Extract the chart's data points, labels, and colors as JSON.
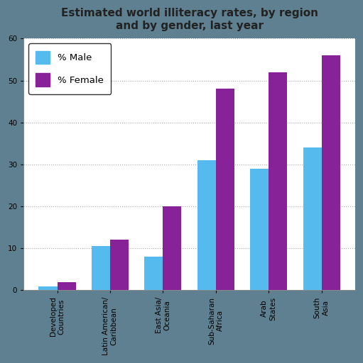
{
  "title": "Estimated world illiteracy rates, by region\nand by gender, last year",
  "categories": [
    "Developed\nCountries",
    "Latin American/\nCaribbean",
    "East Asia/\nOceania",
    "Sub-Saharan\nAfrica",
    "Arab\nStates",
    "South\nAsia"
  ],
  "male_values": [
    1,
    10.5,
    8,
    31,
    29,
    34
  ],
  "female_values": [
    2,
    12,
    20,
    48,
    52,
    56
  ],
  "male_color": "#55BBEE",
  "female_color": "#882299",
  "ylim": [
    0,
    60
  ],
  "yticks": [
    0,
    10,
    20,
    30,
    40,
    50,
    60
  ],
  "outer_bg_color": "#5F8090",
  "plot_bg_color": "#FFFFFF",
  "title_fontsize": 11,
  "tick_fontsize": 7.5,
  "legend_fontsize": 9.5,
  "bar_width": 0.35
}
